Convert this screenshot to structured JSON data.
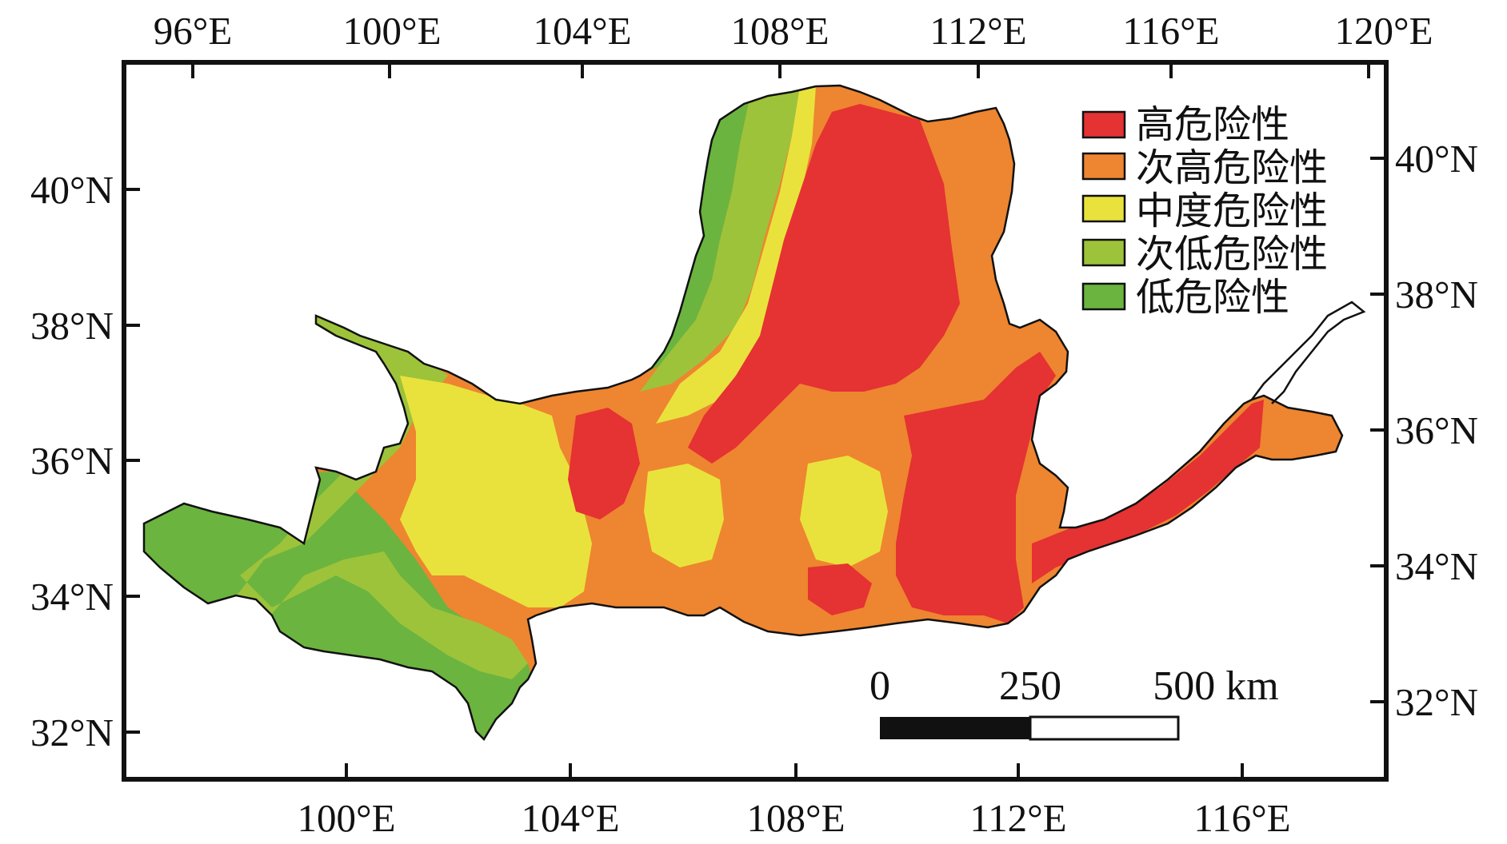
{
  "axes": {
    "top_lon_labels": [
      "96°E",
      "100°E",
      "104°E",
      "108°E",
      "112°E",
      "116°E",
      "120°E"
    ],
    "bottom_lon_labels": [
      "100°E",
      "104°E",
      "108°E",
      "112°E",
      "116°E"
    ],
    "left_lat_labels": [
      "40°N",
      "38°N",
      "36°N",
      "34°N",
      "32°N"
    ],
    "right_lat_labels": [
      "40°N",
      "38°N",
      "36°N",
      "34°N",
      "32°N"
    ]
  },
  "legend": {
    "items": [
      {
        "label": "高危险性",
        "color": "#e53232",
        "icon": "red-swatch-icon"
      },
      {
        "label": "次高危险性",
        "color": "#ee8530",
        "icon": "orange-swatch-icon"
      },
      {
        "label": "中度危险性",
        "color": "#e9e23c",
        "icon": "yellow-swatch-icon"
      },
      {
        "label": "次低危险性",
        "color": "#9dc33b",
        "icon": "light-green-swatch-icon"
      },
      {
        "label": "低危险性",
        "color": "#6bb43f",
        "icon": "green-swatch-icon"
      }
    ]
  },
  "scale_bar": {
    "labels": [
      "0",
      "250",
      "500 km"
    ]
  },
  "colors": {
    "high": "#e53232",
    "sub_high": "#ee8530",
    "moderate": "#e9e23c",
    "sub_low": "#9dc33b",
    "low": "#6bb43f",
    "frame": "#111111"
  }
}
